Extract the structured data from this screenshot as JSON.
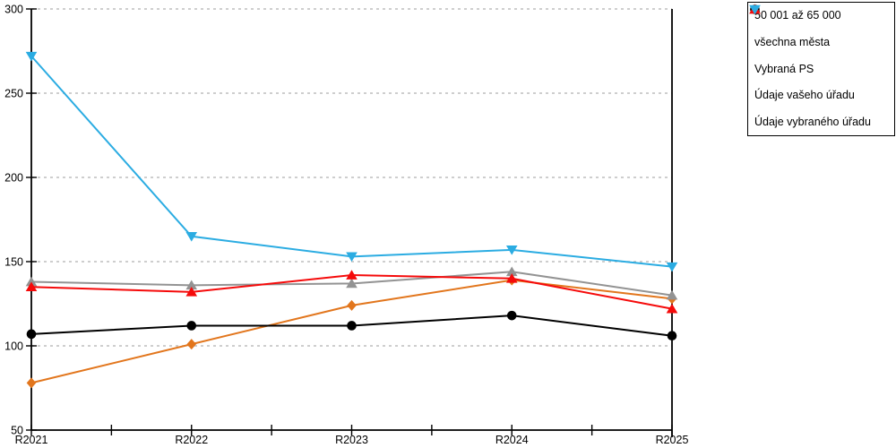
{
  "chart_data": {
    "type": "line",
    "title": "",
    "xlabel": "",
    "ylabel": "",
    "categories": [
      "R2021",
      "R2022",
      "R2023",
      "R2024",
      "R2025"
    ],
    "series": [
      {
        "name": "50 001 až 65 000",
        "marker": "diamond",
        "color": "#E2761D",
        "values": [
          78,
          101,
          124,
          139,
          128
        ]
      },
      {
        "name": "všechna města",
        "marker": "circle",
        "color": "#000000",
        "values": [
          107,
          112,
          112,
          118,
          106
        ]
      },
      {
        "name": "Vybraná PS",
        "marker": "triangle-up",
        "color": "#939393",
        "values": [
          138,
          136,
          137,
          144,
          130
        ]
      },
      {
        "name": "Údaje vašeho úřadu",
        "marker": "triangle-up",
        "color": "#F50A0A",
        "values": [
          135,
          132,
          142,
          140,
          122
        ]
      },
      {
        "name": "Údaje vybraného úřadu",
        "marker": "triangle-down",
        "color": "#2BACE2",
        "values": [
          272,
          165,
          153,
          157,
          147
        ]
      }
    ],
    "ylim": [
      50,
      300
    ],
    "ytick_step": 50,
    "y_tick_labels": [
      "50",
      "100",
      "150",
      "200",
      "250",
      "300"
    ],
    "grid": "dashed-horizontal",
    "minor_x_ticks_between_categories": true,
    "legend_position": "top-right-outside"
  },
  "colors": {
    "background": "#FFFFFF",
    "axis": "#000000",
    "grid": "#BDBDBD",
    "tick_label": "#000000",
    "legend_border": "#000000",
    "legend_background": "#FFFFFF"
  }
}
